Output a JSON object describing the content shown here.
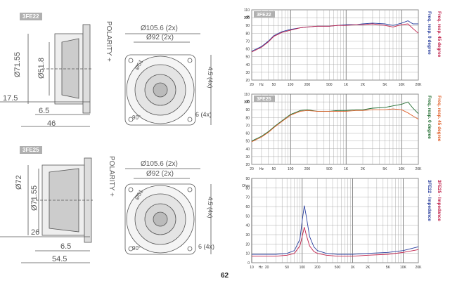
{
  "page_number": "62",
  "models": {
    "top": {
      "tag": "3FE22",
      "polarity": "POLARITY +",
      "side_dims": {
        "d1": "Ø71.55",
        "d2": "Ø51.8",
        "h": "17.5",
        "w1": "6.5",
        "w2": "46"
      },
      "front_dims": {
        "bolt_circle": "Ø105.6 (2x)",
        "cutout": "Ø92 (2x)",
        "inner": "Ø51",
        "slot": "4.5 (4x)",
        "hole": "6 (4x)",
        "angle": "90°"
      }
    },
    "bottom": {
      "tag": "3FE25",
      "polarity": "POLARITY +",
      "side_dims": {
        "d1": "Ø71.55",
        "d2": "Ø72",
        "h": "26",
        "w1": "6.5",
        "w2": "54.5"
      },
      "front_dims": {
        "bolt_circle": "Ø105.6 (2x)",
        "cutout": "Ø92 (2x)",
        "inner": "Ø51",
        "slot": "4.5 (4x)",
        "hole": "6 (4x)",
        "angle": "90°"
      }
    }
  },
  "chart_data": [
    {
      "type": "line",
      "title": "3FE22",
      "ylabel": "dB",
      "x_scale": "log",
      "xlim": [
        20,
        20000
      ],
      "ylim": [
        20,
        110
      ],
      "y_ticks": [
        "20",
        "30",
        "40",
        "50",
        "60",
        "70",
        "80",
        "90",
        "100",
        "110"
      ],
      "x_tick_labels": [
        "20",
        "Hz",
        "50",
        "100",
        "200",
        "500",
        "1K",
        "2K",
        "5K",
        "10K",
        "20K"
      ],
      "x_tick_values": [
        20,
        30,
        50,
        100,
        200,
        500,
        1000,
        2000,
        5000,
        10000,
        20000
      ],
      "series": [
        {
          "name": "Freq. resp. 0 degree",
          "color": "#2a3f9e",
          "x": [
            20,
            30,
            40,
            50,
            70,
            100,
            150,
            200,
            300,
            500,
            700,
            1000,
            1500,
            2000,
            3000,
            5000,
            7000,
            10000,
            13000,
            16000,
            20000
          ],
          "y": [
            57,
            63,
            70,
            77,
            82,
            85,
            87,
            88,
            89,
            89,
            90,
            91,
            91,
            92,
            93,
            92,
            90,
            93,
            96,
            92,
            92
          ]
        },
        {
          "name": "Freq. resp. 45 degree",
          "color": "#c0204a",
          "x": [
            20,
            30,
            40,
            50,
            70,
            100,
            150,
            200,
            300,
            500,
            700,
            1000,
            1500,
            2000,
            3000,
            5000,
            7000,
            10000,
            13000,
            16000,
            20000
          ],
          "y": [
            56,
            62,
            69,
            76,
            81,
            84,
            87,
            88,
            89,
            89,
            90,
            90,
            91,
            91,
            92,
            90,
            88,
            91,
            92,
            86,
            80
          ]
        }
      ]
    },
    {
      "type": "line",
      "title": "3FE25",
      "ylabel": "dB",
      "x_scale": "log",
      "xlim": [
        20,
        20000
      ],
      "ylim": [
        20,
        110
      ],
      "y_ticks": [
        "20",
        "30",
        "40",
        "50",
        "60",
        "70",
        "80",
        "90",
        "100",
        "110"
      ],
      "x_tick_labels": [
        "20",
        "Hz",
        "50",
        "100",
        "200",
        "500",
        "1K",
        "2K",
        "5K",
        "10K",
        "20K"
      ],
      "x_tick_values": [
        20,
        30,
        50,
        100,
        200,
        500,
        1000,
        2000,
        5000,
        10000,
        20000
      ],
      "series": [
        {
          "name": "Freq. resp. 0 degree",
          "color": "#1f6b2e",
          "x": [
            20,
            30,
            40,
            50,
            70,
            100,
            150,
            200,
            300,
            500,
            700,
            1000,
            1500,
            2000,
            3000,
            5000,
            7000,
            10000,
            13000,
            16000,
            20000
          ],
          "y": [
            50,
            56,
            62,
            68,
            76,
            84,
            89,
            90,
            88,
            88,
            89,
            89,
            90,
            90,
            92,
            93,
            95,
            97,
            100,
            92,
            85
          ]
        },
        {
          "name": "Freq. resp. 45 degree",
          "color": "#e0602a",
          "x": [
            20,
            30,
            40,
            50,
            70,
            100,
            150,
            200,
            300,
            500,
            700,
            1000,
            1500,
            2000,
            3000,
            5000,
            7000,
            10000,
            13000,
            16000,
            20000
          ],
          "y": [
            49,
            55,
            61,
            67,
            75,
            83,
            88,
            89,
            88,
            88,
            88,
            88,
            89,
            89,
            90,
            90,
            91,
            90,
            86,
            82,
            78
          ]
        }
      ]
    },
    {
      "type": "line",
      "ylabel": "Ohm",
      "x_scale": "log",
      "xlim": [
        10,
        20000
      ],
      "ylim": [
        0,
        90
      ],
      "y_ticks": [
        "0",
        "10",
        "20",
        "30",
        "40",
        "50",
        "60",
        "70",
        "80",
        "90"
      ],
      "x_tick_labels": [
        "10",
        "Hz",
        "20",
        "50",
        "100",
        "200",
        "500",
        "1K",
        "2K",
        "5K",
        "10K",
        "20K"
      ],
      "x_tick_values": [
        10,
        15,
        20,
        50,
        100,
        200,
        500,
        1000,
        2000,
        5000,
        10000,
        20000
      ],
      "series": [
        {
          "name": "3FE22 - Impedance",
          "color": "#2a3f9e",
          "x": [
            10,
            20,
            30,
            50,
            70,
            90,
            100,
            110,
            120,
            140,
            170,
            200,
            300,
            500,
            1000,
            2000,
            5000,
            10000,
            20000
          ],
          "y": [
            9,
            9,
            9,
            10,
            13,
            25,
            45,
            61,
            50,
            28,
            17,
            13,
            10,
            9,
            9,
            10,
            11,
            13,
            17
          ]
        },
        {
          "name": "3FE25 - Impedance",
          "color": "#c0204a",
          "x": [
            10,
            20,
            30,
            50,
            70,
            90,
            100,
            110,
            120,
            140,
            170,
            200,
            300,
            500,
            1000,
            2000,
            5000,
            10000,
            20000
          ],
          "y": [
            7,
            7,
            7,
            8,
            10,
            18,
            28,
            38,
            30,
            18,
            12,
            10,
            8,
            7,
            7,
            8,
            9,
            11,
            14
          ]
        }
      ]
    }
  ]
}
